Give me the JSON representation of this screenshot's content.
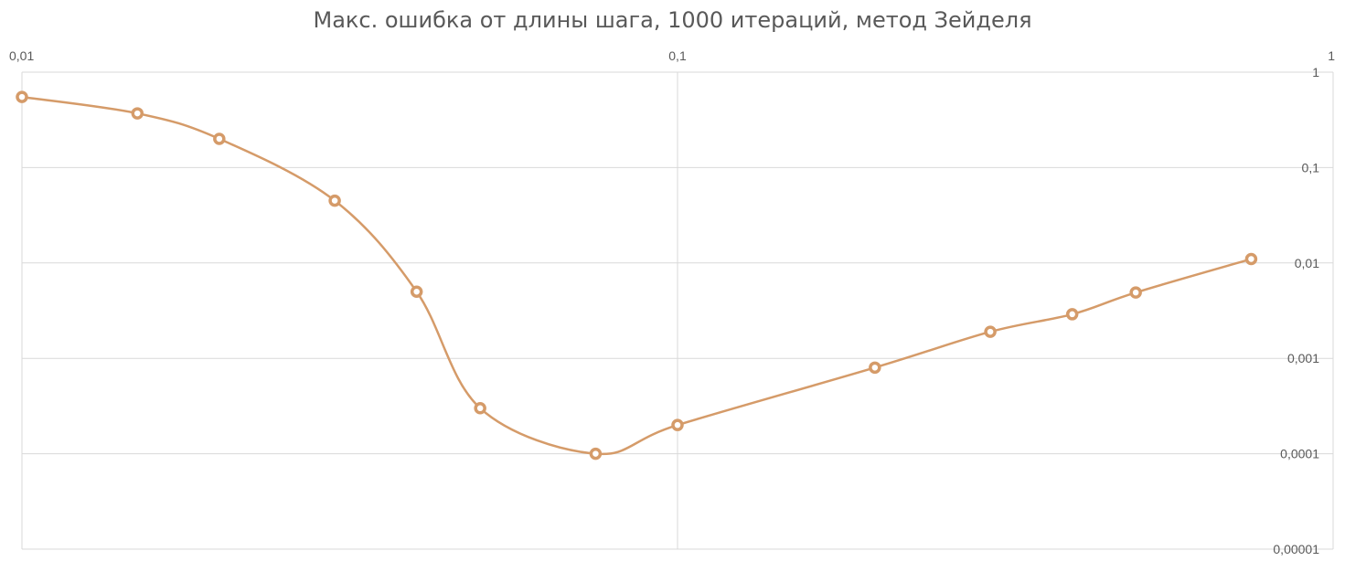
{
  "chart_data": {
    "type": "line",
    "title": "Макс. ошибка от длины шага, 1000 итераций, метод Зейделя",
    "xlabel": "",
    "ylabel": "",
    "x_scale": "log",
    "y_scale": "log",
    "xlim": [
      0.01,
      1
    ],
    "ylim": [
      1e-05,
      1
    ],
    "x_axis_position": "top",
    "y_axis_position": "right",
    "x_ticks": [
      "0,01",
      "0,1",
      "1"
    ],
    "y_ticks": [
      "1",
      "0,1",
      "0,01",
      "0,001",
      "0,0001",
      "0,00001"
    ],
    "grid": true,
    "smooth": true,
    "series": [
      {
        "color": "#D59B69",
        "marker": "circle",
        "x": [
          0.01,
          0.015,
          0.02,
          0.03,
          0.04,
          0.05,
          0.075,
          0.1,
          0.2,
          0.3,
          0.4,
          0.5,
          0.75
        ],
        "y": [
          0.55,
          0.37,
          0.2,
          0.045,
          0.005,
          0.0003,
          0.0001,
          0.0002,
          0.0008,
          0.0019,
          0.0029,
          0.0049,
          0.011
        ]
      }
    ]
  }
}
